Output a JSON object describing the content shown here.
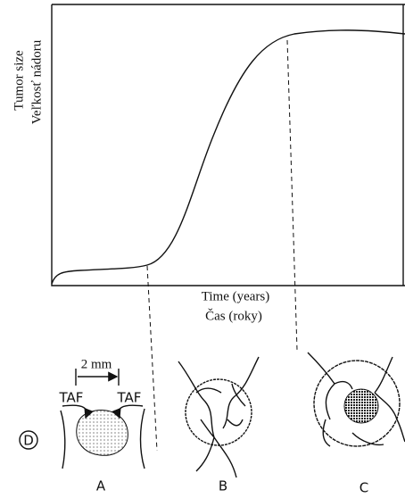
{
  "axes": {
    "y_label_1": "Tumor size",
    "y_label_2": "Veľkosť nádoru",
    "x_label_1": "Time (years)",
    "x_label_2": "Čas (roky)"
  },
  "annotations": {
    "scale": "2 mm",
    "taf_left": "TAF",
    "taf_right": "TAF",
    "figure_mark": "D"
  },
  "stages": [
    {
      "label": "A"
    },
    {
      "label": "B"
    },
    {
      "label": "C"
    }
  ]
}
